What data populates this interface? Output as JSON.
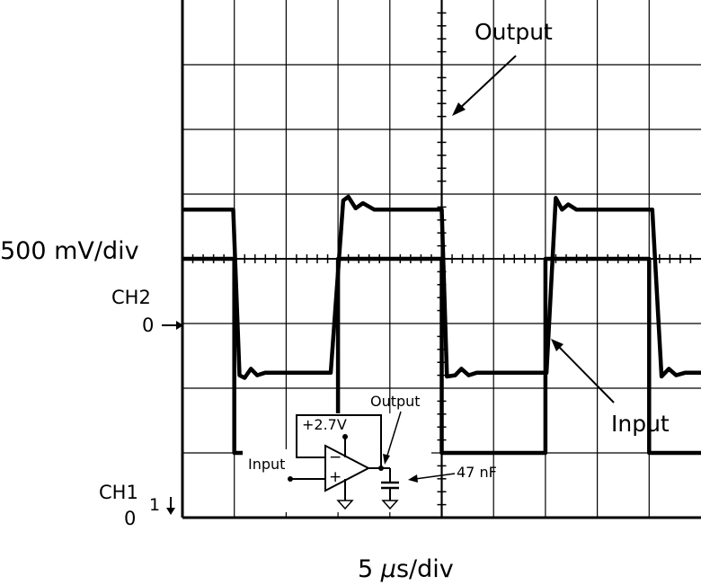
{
  "chart_data": {
    "type": "line",
    "x_units_per_div": 5,
    "x_unit": "µs",
    "x_range": [
      0,
      50
    ],
    "grid": true,
    "axes": {
      "y_scale": "500 mV/div",
      "x_scale_prefix": "5 ",
      "x_scale_mu": "µ",
      "x_scale_suffix": "s/div"
    },
    "channels": [
      {
        "label_name": "CH2",
        "zero_label": "0",
        "zero_div": 4
      },
      {
        "label_name": "CH1",
        "zero_label": "0",
        "marker_label": "1",
        "zero_div": 0
      }
    ],
    "series": [
      {
        "name": "Output",
        "volts_per_div": 0.5,
        "x": [
          0,
          4.9,
          5.5,
          6.0,
          6.6,
          7.2,
          8.0,
          10.5,
          14.3,
          15.5,
          16.0,
          16.7,
          17.4,
          18.5,
          25.0,
          25.5,
          26.3,
          26.9,
          27.6,
          28.4,
          35.1,
          36.0,
          36.6,
          37.2,
          38.0,
          45.3,
          46.2,
          46.9,
          47.6,
          48.5,
          50.0
        ],
        "volts": [
          0.38,
          0.38,
          -0.9,
          -0.92,
          -0.85,
          -0.9,
          -0.88,
          -0.88,
          -0.88,
          0.45,
          0.48,
          0.39,
          0.43,
          0.38,
          0.38,
          -0.91,
          -0.9,
          -0.85,
          -0.9,
          -0.88,
          -0.88,
          0.47,
          0.38,
          0.42,
          0.38,
          0.38,
          -0.91,
          -0.85,
          -0.9,
          -0.88,
          -0.88
        ]
      },
      {
        "name": "Input",
        "volts_per_div": 0.5,
        "x": [
          0,
          5.0,
          5.0,
          15.0,
          15.0,
          25.0,
          25.0,
          35.0,
          35.0,
          45.0,
          45.0,
          50.0
        ],
        "volts": [
          2.0,
          2.0,
          0.5,
          0.5,
          2.0,
          2.0,
          0.5,
          0.5,
          2.0,
          2.0,
          0.5,
          0.5
        ]
      }
    ],
    "annotations": [
      {
        "text": "Output",
        "points_to": "Output"
      },
      {
        "text": "Input",
        "points_to": "Input"
      }
    ],
    "inset_schematic": {
      "supply_label": "+2.7V",
      "input_label": "Input",
      "output_label": "Output",
      "cap_label": "47 nF",
      "minus_sign": "−",
      "plus_sign": "+"
    }
  }
}
